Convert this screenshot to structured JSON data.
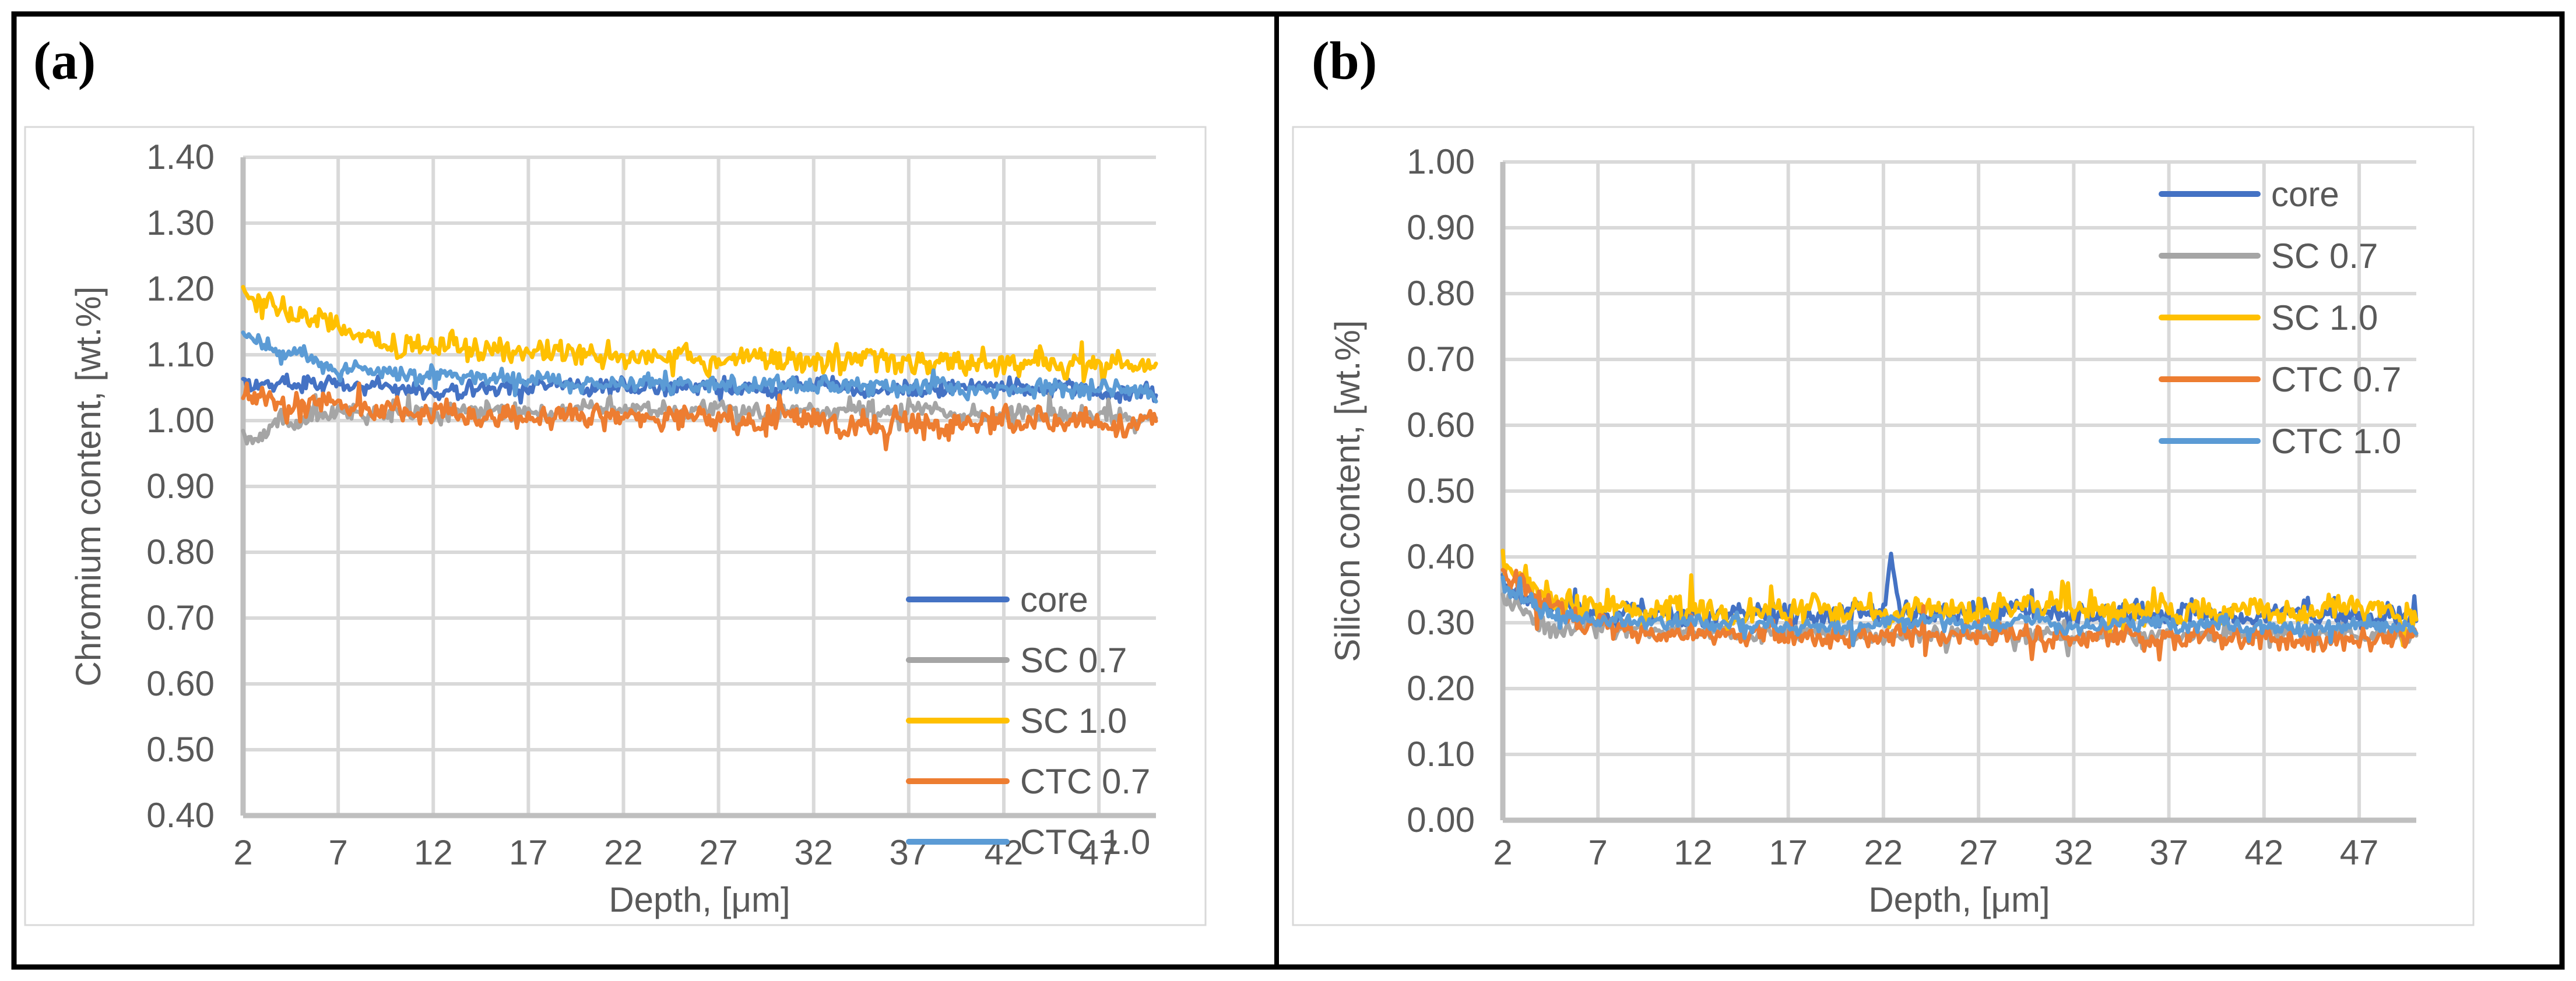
{
  "figure": {
    "background": "#ffffff",
    "frame_color": "#000000",
    "text_color": "#595959",
    "gridline_color": "#D9D9D9",
    "axis_line_color": "#BFBFBF"
  },
  "chart_data": [
    {
      "type": "line",
      "tag": "(a)",
      "xlabel": "Depth, [μm]",
      "ylabel": "Chromium content, [wt.%]",
      "xlim": [
        2,
        50
      ],
      "ylim": [
        0.4,
        1.4
      ],
      "x_ticks": [
        2,
        7,
        12,
        17,
        22,
        27,
        32,
        37,
        42,
        47
      ],
      "y_tick_step": 0.1,
      "y_tick_decimals": 2,
      "grid": true,
      "legend_position": "inside-lower-right",
      "x_points": {
        "start": 2,
        "end": 50,
        "count": 481
      },
      "series": [
        {
          "name": "core",
          "color": "#4472C4",
          "noise_amp": 0.015,
          "seed": 101,
          "trend": [
            [
              2,
              1.062
            ],
            [
              5,
              1.056
            ],
            [
              10,
              1.052
            ],
            [
              20,
              1.05
            ],
            [
              30,
              1.05
            ],
            [
              40,
              1.047
            ],
            [
              50,
              1.045
            ]
          ]
        },
        {
          "name": "SC 0.7",
          "color": "#A5A5A5",
          "noise_amp": 0.016,
          "seed": 202,
          "trend": [
            [
              2,
              0.985
            ],
            [
              2.8,
              0.968
            ],
            [
              4,
              0.998
            ],
            [
              8,
              1.01
            ],
            [
              15,
              1.015
            ],
            [
              25,
              1.018
            ],
            [
              35,
              1.015
            ],
            [
              50,
              1.008
            ]
          ]
        },
        {
          "name": "SC 1.0",
          "color": "#FFC000",
          "noise_amp": 0.021,
          "seed": 303,
          "trend": [
            [
              2,
              1.195
            ],
            [
              4,
              1.168
            ],
            [
              7,
              1.138
            ],
            [
              10,
              1.118
            ],
            [
              15,
              1.105
            ],
            [
              20,
              1.1
            ],
            [
              30,
              1.094
            ],
            [
              40,
              1.09
            ],
            [
              50,
              1.085
            ]
          ]
        },
        {
          "name": "CTC 0.7",
          "color": "#ED7D31",
          "noise_amp": 0.021,
          "seed": 404,
          "trend": [
            [
              2,
              1.035
            ],
            [
              5,
              1.022
            ],
            [
              10,
              1.012
            ],
            [
              20,
              1.005
            ],
            [
              30,
              1.0
            ],
            [
              40,
              0.998
            ],
            [
              50,
              0.992
            ]
          ]
        },
        {
          "name": "CTC 1.0",
          "color": "#5B9BD5",
          "noise_amp": 0.015,
          "seed": 505,
          "trend": [
            [
              2,
              1.132
            ],
            [
              4,
              1.1
            ],
            [
              7,
              1.082
            ],
            [
              10,
              1.072
            ],
            [
              15,
              1.062
            ],
            [
              20,
              1.057
            ],
            [
              30,
              1.052
            ],
            [
              40,
              1.05
            ],
            [
              50,
              1.047
            ]
          ]
        }
      ]
    },
    {
      "type": "line",
      "tag": "(b)",
      "xlabel": "Depth, [μm]",
      "ylabel": "Silicon content, [wt.%]",
      "xlim": [
        2,
        50
      ],
      "ylim": [
        0.0,
        1.0
      ],
      "x_ticks": [
        2,
        7,
        12,
        17,
        22,
        27,
        32,
        37,
        42,
        47
      ],
      "y_tick_step": 0.1,
      "y_tick_decimals": 2,
      "grid": true,
      "legend_position": "inside-upper-right",
      "x_points": {
        "start": 2,
        "end": 50,
        "count": 481
      },
      "series": [
        {
          "name": "core",
          "color": "#4472C4",
          "noise_amp": 0.018,
          "seed": 606,
          "trend": [
            [
              2,
              0.36
            ],
            [
              3,
              0.335
            ],
            [
              5,
              0.318
            ],
            [
              10,
              0.312
            ],
            [
              20,
              0.315
            ],
            [
              22,
              0.318
            ],
            [
              22.4,
              0.395
            ],
            [
              22.9,
              0.318
            ],
            [
              30,
              0.315
            ],
            [
              40,
              0.312
            ],
            [
              50,
              0.312
            ]
          ]
        },
        {
          "name": "SC 0.7",
          "color": "#A5A5A5",
          "noise_amp": 0.015,
          "seed": 707,
          "trend": [
            [
              2,
              0.335
            ],
            [
              4,
              0.3
            ],
            [
              8,
              0.288
            ],
            [
              15,
              0.285
            ],
            [
              25,
              0.285
            ],
            [
              35,
              0.282
            ],
            [
              50,
              0.28
            ]
          ]
        },
        {
          "name": "SC 1.0",
          "color": "#FFC000",
          "noise_amp": 0.024,
          "seed": 808,
          "trend": [
            [
              2,
              0.39
            ],
            [
              4,
              0.345
            ],
            [
              7,
              0.325
            ],
            [
              15,
              0.318
            ],
            [
              25,
              0.322
            ],
            [
              35,
              0.32
            ],
            [
              50,
              0.318
            ]
          ]
        },
        {
          "name": "CTC 0.7",
          "color": "#ED7D31",
          "noise_amp": 0.021,
          "seed": 909,
          "trend": [
            [
              2,
              0.375
            ],
            [
              4,
              0.325
            ],
            [
              8,
              0.288
            ],
            [
              15,
              0.278
            ],
            [
              25,
              0.28
            ],
            [
              35,
              0.276
            ],
            [
              50,
              0.275
            ]
          ]
        },
        {
          "name": "CTC 1.0",
          "color": "#5B9BD5",
          "noise_amp": 0.014,
          "seed": 1010,
          "trend": [
            [
              2,
              0.36
            ],
            [
              4,
              0.315
            ],
            [
              10,
              0.298
            ],
            [
              20,
              0.297
            ],
            [
              30,
              0.3
            ],
            [
              40,
              0.296
            ],
            [
              50,
              0.292
            ]
          ]
        }
      ]
    }
  ]
}
